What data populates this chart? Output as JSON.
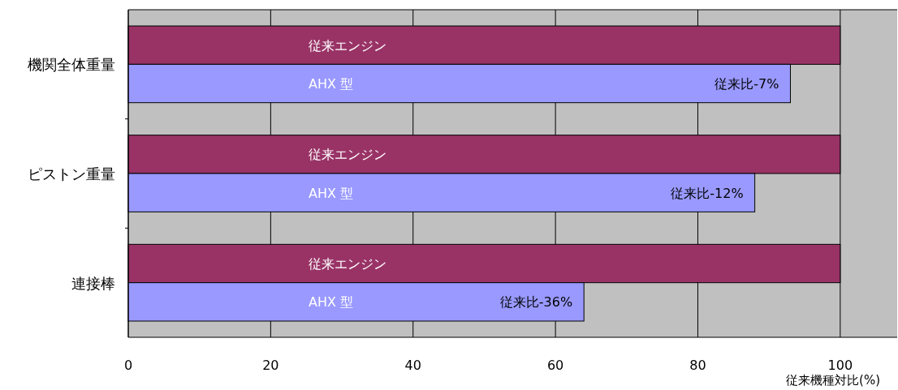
{
  "chart_data": {
    "type": "bar",
    "orientation": "horizontal",
    "categories": [
      "機関全体重量",
      "ピストン重量",
      "連接棒"
    ],
    "series": [
      {
        "name": "従来エンジン",
        "color": "#993366",
        "values": [
          100,
          100,
          100
        ]
      },
      {
        "name": "AHX 型",
        "color": "#9999ff",
        "values": [
          93,
          88,
          64
        ],
        "value_labels": [
          "従来比-7%",
          "従来比-12%",
          "従来比-36%"
        ]
      }
    ],
    "xlim": [
      0,
      108
    ],
    "xticks": [
      0,
      20,
      40,
      60,
      80,
      100
    ],
    "xlabel": "従来機種対比(%)",
    "grid": "x"
  }
}
